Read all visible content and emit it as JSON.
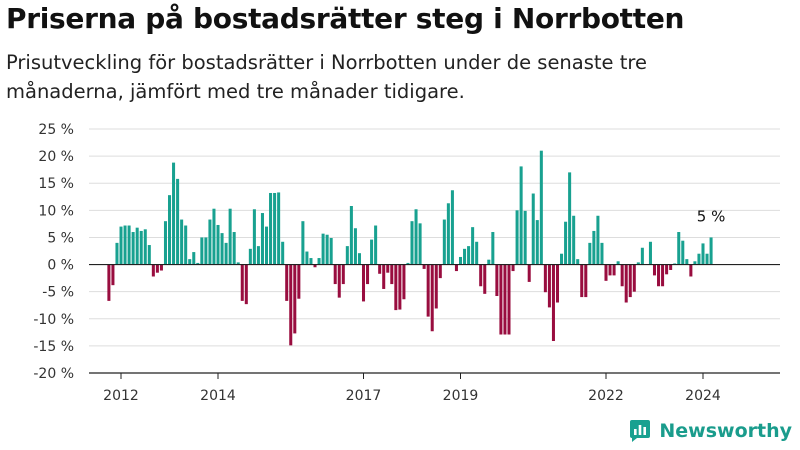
{
  "header": {
    "title": "Priserna på bostadsrätter steg i Norrbotten",
    "subtitle": "Prisutveckling för bostadsrätter i Norrbotten under de senaste tre månaderna, jämfört med tre månader tidigare."
  },
  "brand": {
    "name": "Newsworthy",
    "icon": "bar-chart-logo-icon"
  },
  "colors": {
    "positive": "#18a190",
    "negative": "#990d3f",
    "axis": "#222222",
    "grid": "#dddddd"
  },
  "chart_data": {
    "type": "bar",
    "title": "Priserna på bostadsrätter steg i Norrbotten",
    "subtitle": "Prisutveckling för bostadsrätter i Norrbotten under de senaste tre månaderna, jämfört med tre månader tidigare.",
    "xlabel": "",
    "ylabel": "",
    "ylim": [
      -20,
      25
    ],
    "yticks": [
      -20,
      -15,
      -10,
      -5,
      0,
      5,
      10,
      15,
      20,
      25
    ],
    "ytick_labels": [
      "-20 %",
      "-15 %",
      "-10 %",
      "-5 %",
      "0 %",
      "5 %",
      "10 %",
      "15 %",
      "20 %",
      "25 %"
    ],
    "xtick_labels": [
      {
        "label": "2012",
        "x": 2012.0
      },
      {
        "label": "2014",
        "x": 2014.0
      },
      {
        "label": "2017",
        "x": 2017.0
      },
      {
        "label": "2019",
        "x": 2019.0
      },
      {
        "label": "2022",
        "x": 2022.0
      },
      {
        "label": "2024",
        "x": 2024.0
      }
    ],
    "x_start": 2011.667,
    "x_step": 0.08333,
    "x_range": [
      2011.4,
      2025.5
    ],
    "grid": true,
    "values": [
      0,
      -6.7,
      -3.8,
      4,
      7,
      7.2,
      7.2,
      6,
      6.8,
      6.2,
      6.5,
      3.6,
      -2.2,
      -1.5,
      -1.1,
      8,
      12.8,
      18.8,
      15.8,
      8.3,
      7.2,
      1,
      2.3,
      0.3,
      5,
      5,
      8.3,
      10.3,
      7.3,
      5.8,
      4,
      10.3,
      6,
      0.4,
      -6.7,
      -7.3,
      2.9,
      10.2,
      3.4,
      9.5,
      7,
      13.2,
      13.2,
      13.3,
      4.2,
      -6.7,
      -14.9,
      -12.7,
      -6.3,
      8,
      2.4,
      1.2,
      -0.5,
      1.2,
      5.7,
      5.5,
      4.9,
      -3.6,
      -6.1,
      -3.6,
      3.4,
      10.8,
      6.7,
      2.1,
      -6.8,
      -3.6,
      4.6,
      7.2,
      -1.7,
      -4.5,
      -1.5,
      -3.6,
      -8.4,
      -8.3,
      -6.4,
      0.3,
      8,
      10.2,
      7.6,
      -0.8,
      -9.6,
      -12.3,
      -8.1,
      -2.5,
      8.3,
      11.3,
      13.7,
      -1.2,
      1.4,
      2.9,
      3.4,
      6.9,
      4.2,
      -4,
      -5.4,
      0.9,
      6,
      -5.8,
      -12.9,
      -12.9,
      -12.9,
      -1.2,
      10,
      18.1,
      9.9,
      -3.2,
      13.1,
      8.2,
      21,
      -5.1,
      -7.9,
      -14.1,
      -7,
      2,
      7.9,
      17,
      9,
      1,
      -6,
      -6,
      4,
      6.2,
      9,
      4,
      -3,
      -2,
      -2,
      0.6,
      -4,
      -7,
      -6,
      -5,
      0.4,
      3.1,
      0,
      4.2,
      -2,
      -4,
      -4,
      -1.8,
      -1,
      0.2,
      6,
      4.4,
      1,
      -2.2,
      0.6,
      2,
      3.9,
      2,
      5
    ],
    "annotation": {
      "label": "5 %",
      "value": 5
    }
  }
}
